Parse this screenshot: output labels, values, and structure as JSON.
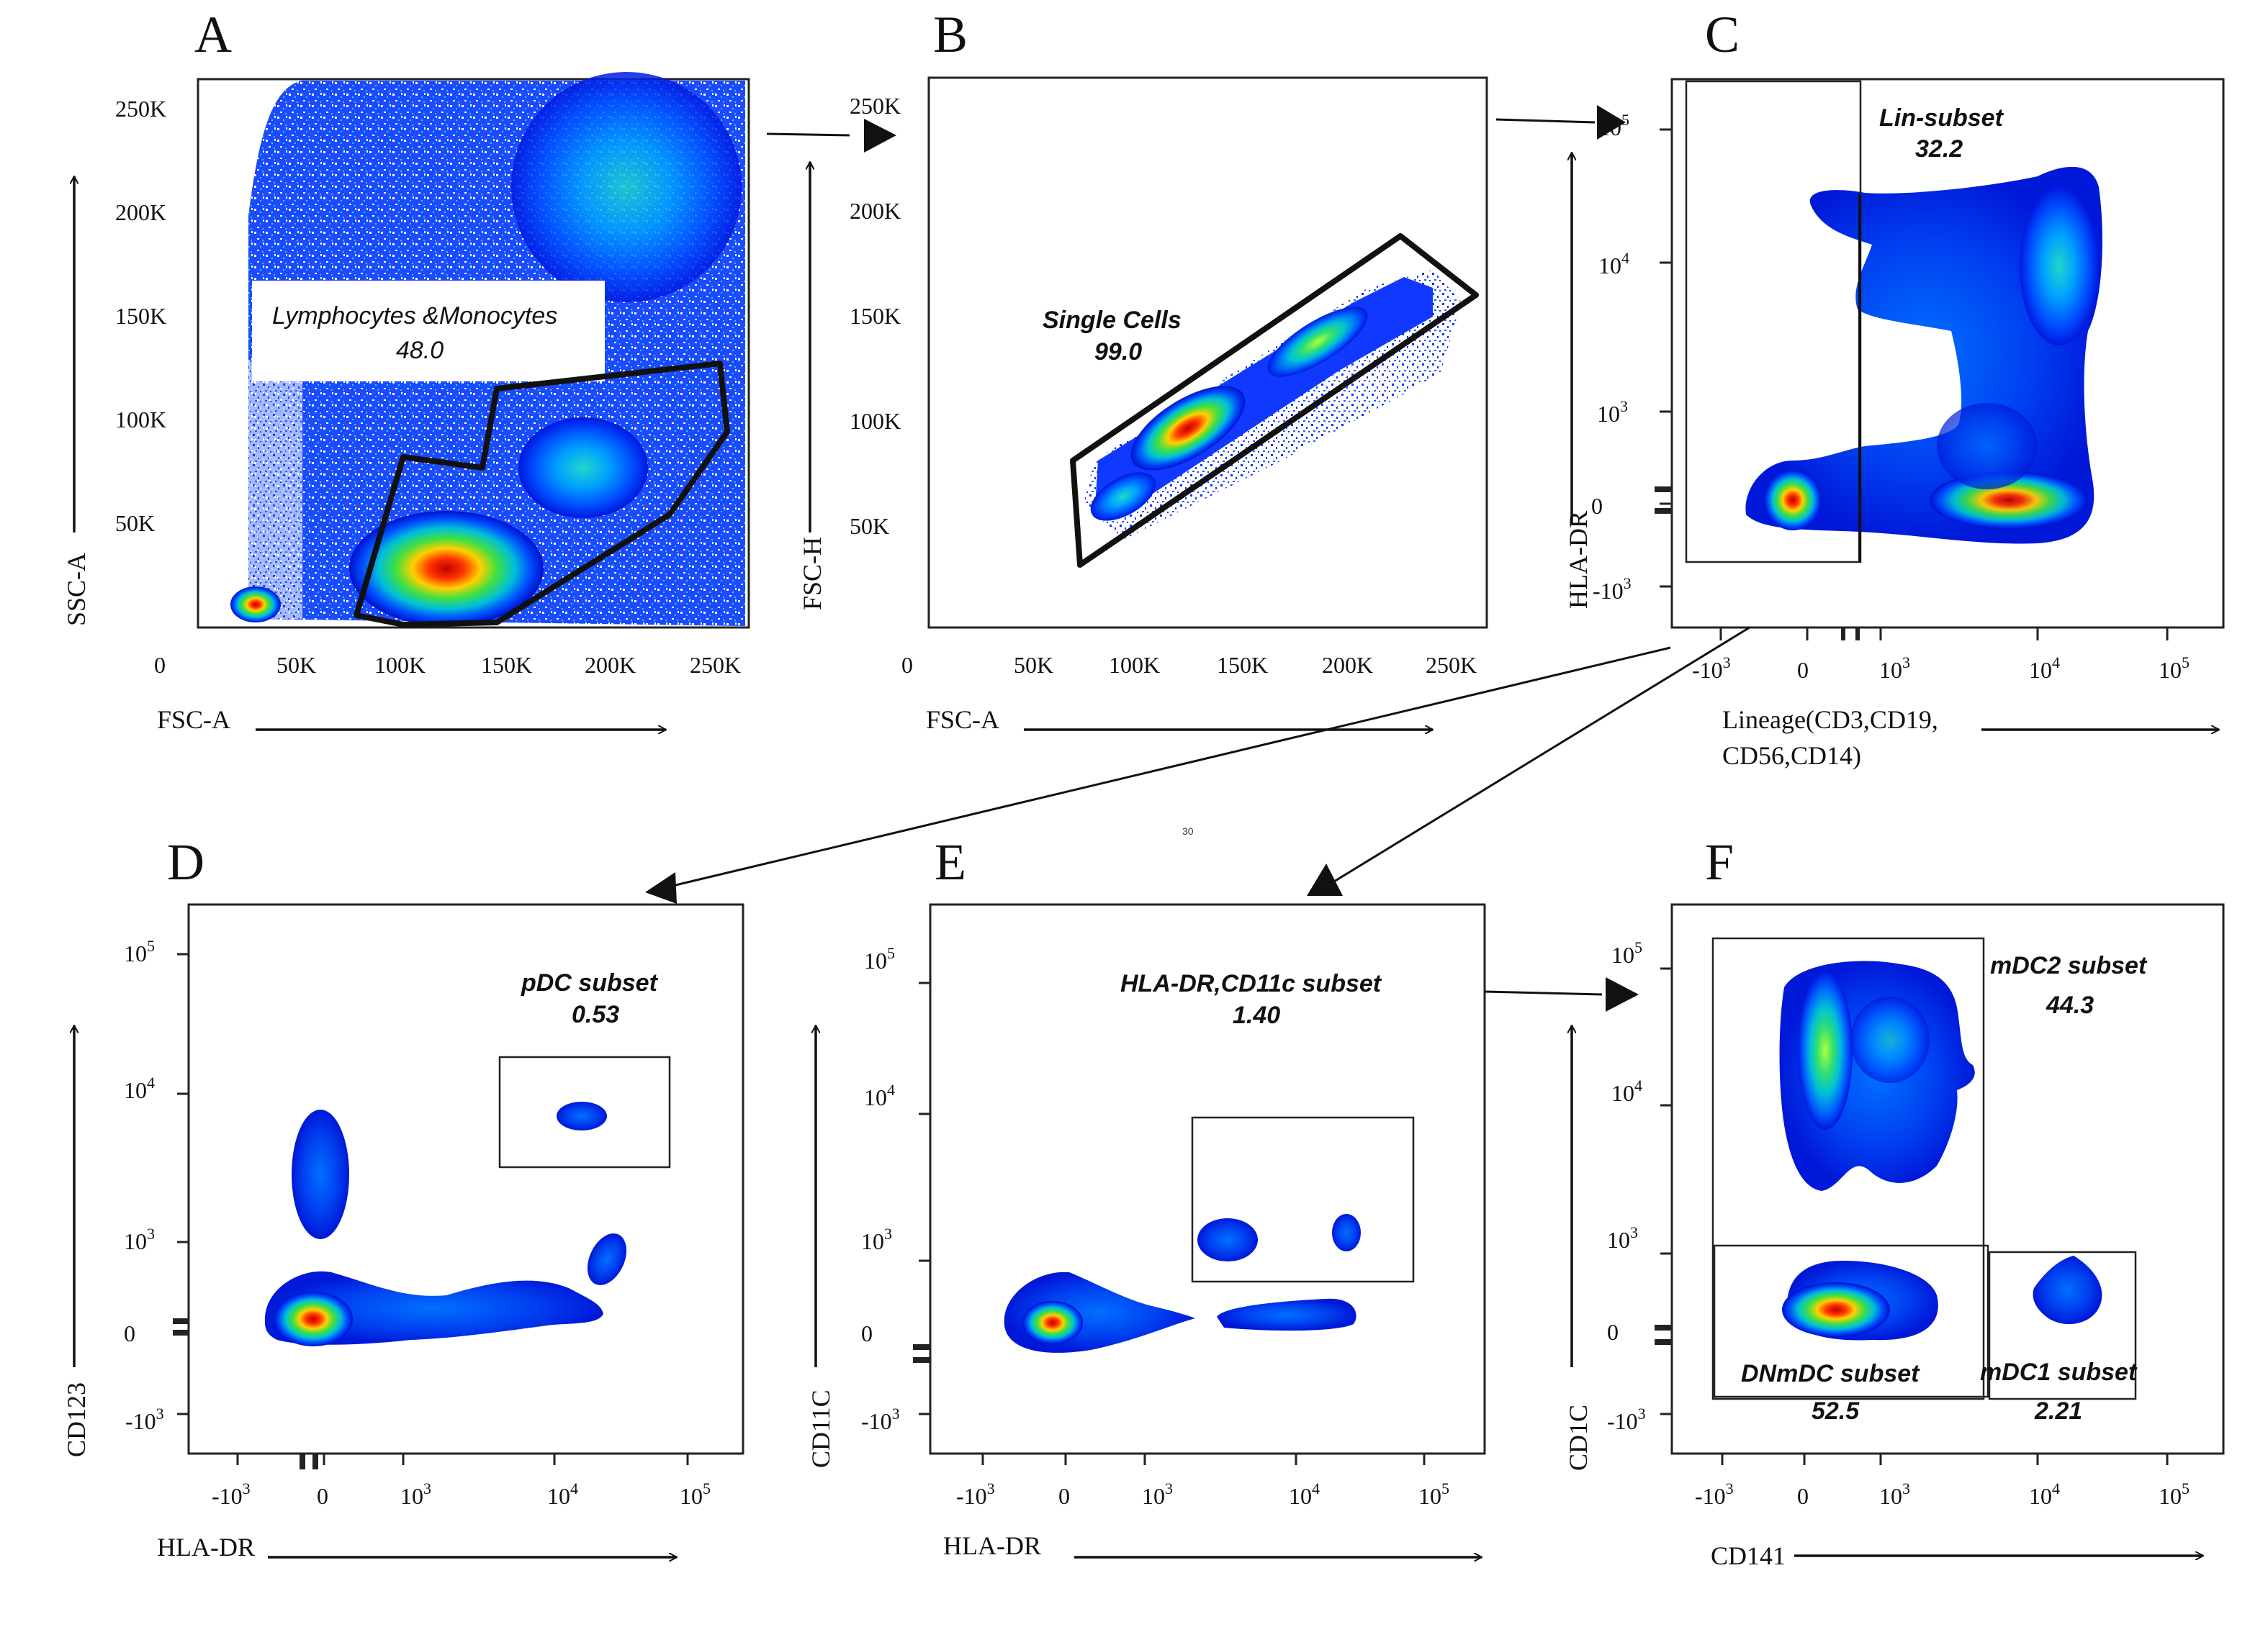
{
  "figure_center_mark": "30",
  "chart_data": [
    {
      "panel": "A",
      "type": "scatter",
      "xlabel": "FSC-A",
      "ylabel": "SSC-A",
      "xticks": [
        "0",
        "50K",
        "100K",
        "150K",
        "200K",
        "250K"
      ],
      "yticks": [
        "250K",
        "200K",
        "150K",
        "100K",
        "50K"
      ],
      "gate": {
        "name": "Lymphocytes &Monocytes",
        "value": "48.0"
      }
    },
    {
      "panel": "B",
      "type": "scatter",
      "xlabel": "FSC-A",
      "ylabel": "FSC-H",
      "xticks": [
        "0",
        "50K",
        "100K",
        "150K",
        "200K",
        "250K"
      ],
      "yticks": [
        "250K",
        "200K",
        "150K",
        "100K",
        "50K"
      ],
      "gate": {
        "name": "Single  Cells",
        "value": "99.0"
      }
    },
    {
      "panel": "C",
      "type": "scatter",
      "xlabel": "Lineage(CD3,CD19,",
      "xlabel2": "CD56,CD14)",
      "ylabel": "HLA-DR",
      "xticks": [
        {
          "base": "-10",
          "exp": "3"
        },
        {
          "base": "0",
          "exp": ""
        },
        {
          "base": "10",
          "exp": "3"
        },
        {
          "base": "10",
          "exp": "4"
        },
        {
          "base": "10",
          "exp": "5"
        }
      ],
      "yticks": [
        {
          "base": "10",
          "exp": "5"
        },
        {
          "base": "10",
          "exp": "4"
        },
        {
          "base": "10",
          "exp": "3"
        },
        {
          "base": "0",
          "exp": ""
        },
        {
          "base": "-10",
          "exp": "3"
        }
      ],
      "gate": {
        "name": "Lin-subset",
        "value": "32.2"
      }
    },
    {
      "panel": "D",
      "type": "scatter",
      "xlabel": "HLA-DR",
      "ylabel": "CD123",
      "xticks": [
        {
          "base": "-10",
          "exp": "3"
        },
        {
          "base": "0",
          "exp": ""
        },
        {
          "base": "10",
          "exp": "3"
        },
        {
          "base": "10",
          "exp": "4"
        },
        {
          "base": "10",
          "exp": "5"
        }
      ],
      "yticks": [
        {
          "base": "10",
          "exp": "5"
        },
        {
          "base": "10",
          "exp": "4"
        },
        {
          "base": "10",
          "exp": "3"
        },
        {
          "base": "0",
          "exp": ""
        },
        {
          "base": "-10",
          "exp": "3"
        }
      ],
      "gate": {
        "name": "pDC  subset",
        "value": "0.53"
      }
    },
    {
      "panel": "E",
      "type": "scatter",
      "xlabel": "HLA-DR",
      "ylabel": "CD11C",
      "xticks": [
        {
          "base": "-10",
          "exp": "3"
        },
        {
          "base": "0",
          "exp": ""
        },
        {
          "base": "10",
          "exp": "3"
        },
        {
          "base": "10",
          "exp": "4"
        },
        {
          "base": "10",
          "exp": "5"
        }
      ],
      "yticks": [
        {
          "base": "10",
          "exp": "5"
        },
        {
          "base": "10",
          "exp": "4"
        },
        {
          "base": "10",
          "exp": "3"
        },
        {
          "base": "0",
          "exp": ""
        },
        {
          "base": "-10",
          "exp": "3"
        }
      ],
      "gate": {
        "name": "HLA-DR,CD11c subset",
        "value": "1.40"
      }
    },
    {
      "panel": "F",
      "type": "scatter",
      "xlabel": "CD141",
      "ylabel": "CD1C",
      "xticks": [
        {
          "base": "-10",
          "exp": "3"
        },
        {
          "base": "0",
          "exp": ""
        },
        {
          "base": "10",
          "exp": "3"
        },
        {
          "base": "10",
          "exp": "4"
        },
        {
          "base": "10",
          "exp": "5"
        }
      ],
      "yticks": [
        {
          "base": "10",
          "exp": "5"
        },
        {
          "base": "10",
          "exp": "4"
        },
        {
          "base": "10",
          "exp": "3"
        },
        {
          "base": "0",
          "exp": ""
        },
        {
          "base": "-10",
          "exp": "3"
        }
      ],
      "gates": [
        {
          "name": "mDC2 subset",
          "value": "44.3"
        },
        {
          "name": "DNmDC subset",
          "value": "52.5"
        },
        {
          "name": "mDC1 subset",
          "value": "2.21"
        }
      ]
    }
  ]
}
